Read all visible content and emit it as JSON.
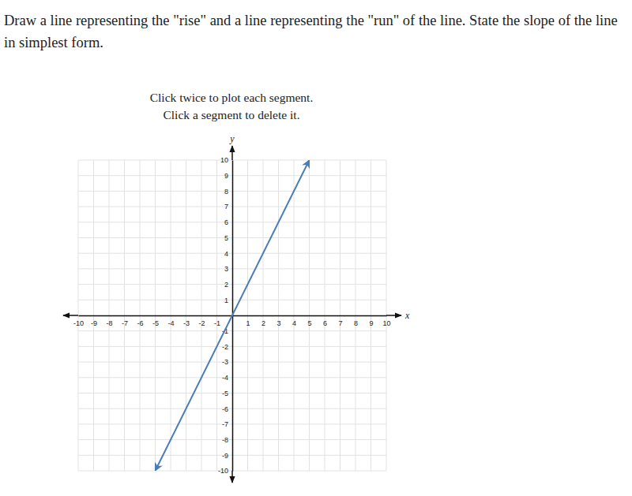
{
  "chart_data": {
    "type": "line",
    "title": "Draw a line representing the \"rise\" and a line representing the \"run\" of the line. State the slope of the line in simplest form.",
    "annotations": [
      "Click twice to plot each segment.",
      "Click a segment to delete it."
    ],
    "x_label": "x",
    "y_label": "y",
    "x": [
      -5,
      5
    ],
    "values": [
      -10,
      10
    ],
    "color": "#4a7db5",
    "xlim": [
      -10,
      10
    ],
    "ylim": [
      -10,
      10
    ],
    "xticks": [
      -10,
      -9,
      -8,
      -7,
      -6,
      -5,
      -4,
      -3,
      -2,
      -1,
      1,
      2,
      3,
      4,
      5,
      6,
      7,
      8,
      9,
      10
    ],
    "yticks": [
      -10,
      -9,
      -8,
      -7,
      -6,
      -5,
      -4,
      -3,
      -2,
      -1,
      1,
      2,
      3,
      4,
      5,
      6,
      7,
      8,
      9,
      10
    ],
    "grid": true
  }
}
